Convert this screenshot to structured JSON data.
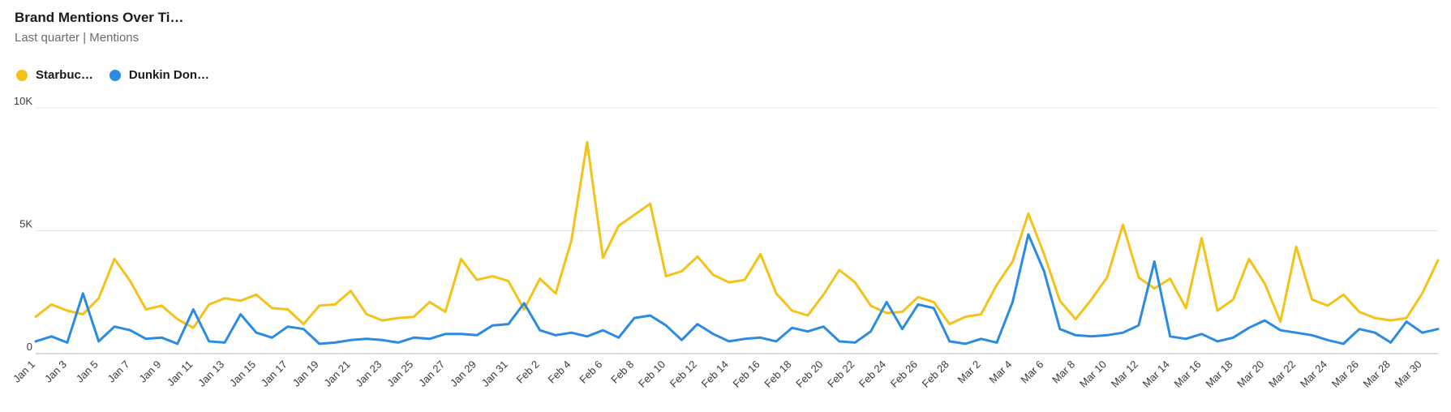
{
  "header": {
    "title": "Brand Mentions Over Ti…",
    "subtitle": "Last quarter | Mentions"
  },
  "legend": [
    {
      "label": "Starbuc…",
      "color": "#f5c218"
    },
    {
      "label": "Dunkin Don…",
      "color": "#2b8be3"
    }
  ],
  "chart_data": {
    "type": "line",
    "title": "Brand Mentions Over Ti…",
    "subtitle": "Last quarter | Mentions",
    "xlabel": "",
    "ylabel": "",
    "ylim": [
      0,
      10000
    ],
    "y_ticks": [
      0,
      5000,
      10000
    ],
    "y_tick_labels": [
      "0",
      "5K",
      "10K"
    ],
    "grid": true,
    "legend_position": "top-left",
    "x_tick_labels": [
      "Jan 1",
      "Jan 3",
      "Jan 5",
      "Jan 7",
      "Jan 9",
      "Jan 11",
      "Jan 13",
      "Jan 15",
      "Jan 17",
      "Jan 19",
      "Jan 21",
      "Jan 23",
      "Jan 25",
      "Jan 27",
      "Jan 29",
      "Jan 31",
      "Feb 2",
      "Feb 4",
      "Feb 6",
      "Feb 8",
      "Feb 10",
      "Feb 12",
      "Feb 14",
      "Feb 16",
      "Feb 18",
      "Feb 20",
      "Feb 22",
      "Feb 24",
      "Feb 26",
      "Feb 28",
      "Mar 2",
      "Mar 4",
      "Mar 6",
      "Mar 8",
      "Mar 10",
      "Mar 12",
      "Mar 14",
      "Mar 16",
      "Mar 18",
      "Mar 20",
      "Mar 22",
      "Mar 24",
      "Mar 26",
      "Mar 28",
      "Mar 30"
    ],
    "series": [
      {
        "name": "Starbuc…",
        "color": "#f5c218",
        "values": [
          1500,
          2000,
          1750,
          1600,
          2250,
          3850,
          2950,
          1800,
          1950,
          1400,
          1050,
          2000,
          2250,
          2150,
          2400,
          1850,
          1800,
          1200,
          1950,
          2000,
          2550,
          1600,
          1350,
          1450,
          1500,
          2100,
          1700,
          3850,
          3000,
          3150,
          2950,
          1800,
          3050,
          2450,
          4600,
          8600,
          3900,
          5200,
          5650,
          6100,
          3150,
          3350,
          3950,
          3200,
          2900,
          3000,
          4050,
          2450,
          1750,
          1550,
          2400,
          3400,
          2900,
          1950,
          1650,
          1700,
          2300,
          2100,
          1200,
          1500,
          1600,
          2800,
          3750,
          5700,
          4050,
          2150,
          1400,
          2200,
          3100,
          5250,
          3100,
          2650,
          3050,
          1850,
          4700,
          1750,
          2200,
          3850,
          2850,
          1300,
          4350,
          2200,
          1950,
          2400,
          1700,
          1450,
          1350,
          1450,
          2450,
          3800
        ]
      },
      {
        "name": "Dunkin Don…",
        "color": "#2b8be3",
        "values": [
          500,
          700,
          450,
          2450,
          500,
          1100,
          950,
          600,
          650,
          400,
          1800,
          500,
          450,
          1600,
          850,
          650,
          1100,
          1000,
          400,
          450,
          550,
          600,
          550,
          450,
          650,
          600,
          800,
          800,
          750,
          1150,
          1200,
          2050,
          950,
          750,
          850,
          700,
          950,
          650,
          1450,
          1550,
          1150,
          550,
          1200,
          800,
          500,
          600,
          650,
          500,
          1050,
          900,
          1100,
          500,
          450,
          900,
          2100,
          1000,
          2000,
          1850,
          500,
          400,
          600,
          450,
          2100,
          4850,
          3350,
          1000,
          750,
          700,
          750,
          850,
          1150,
          3750,
          700,
          600,
          800,
          500,
          650,
          1050,
          1350,
          950,
          850,
          750,
          550,
          400,
          1000,
          850,
          450,
          1300,
          850,
          1000
        ]
      }
    ]
  }
}
